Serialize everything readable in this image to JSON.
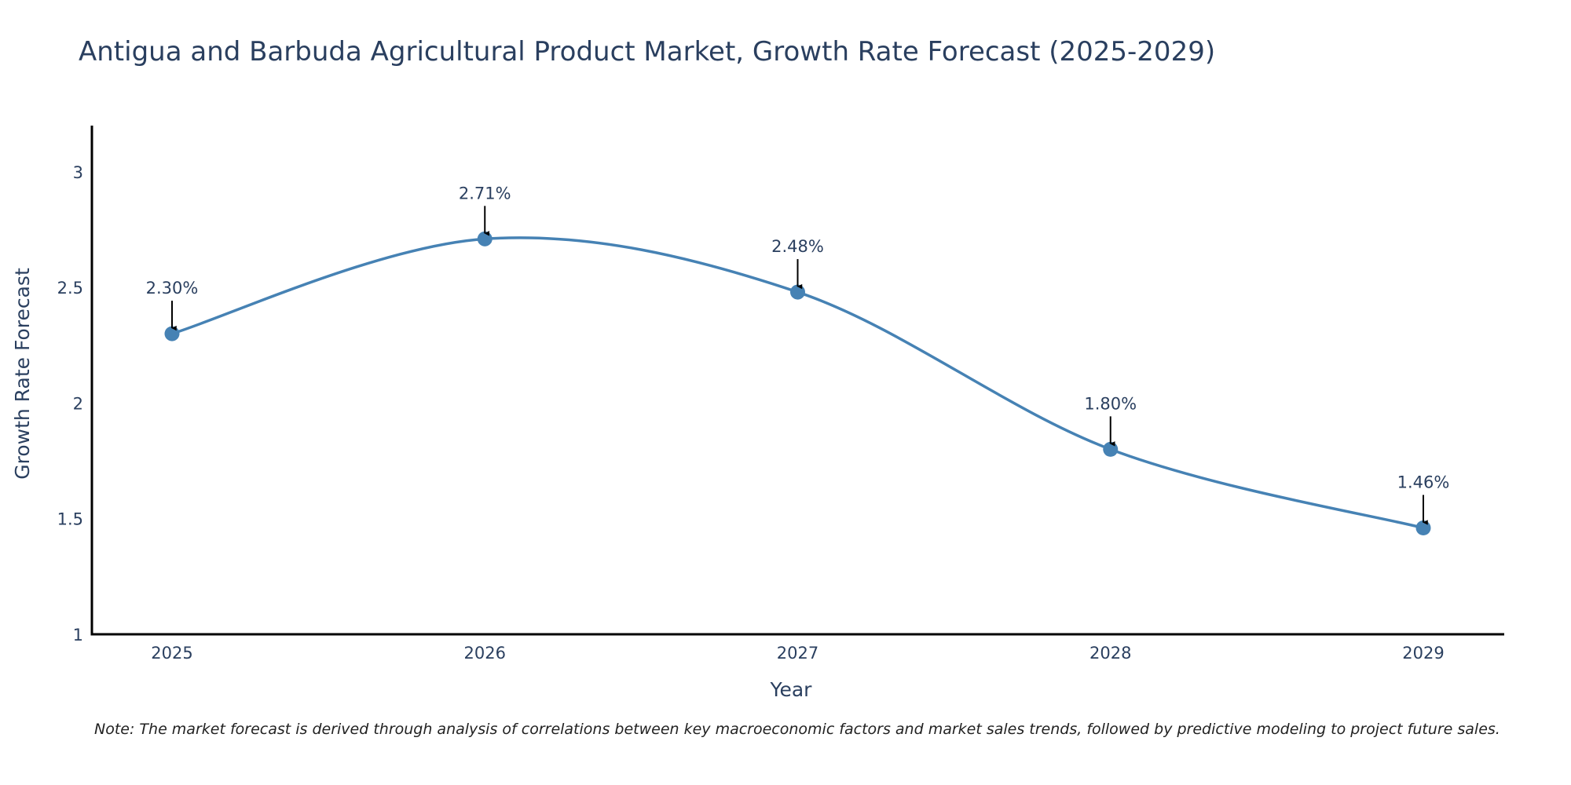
{
  "chart_data": {
    "type": "line",
    "title": "Antigua and Barbuda Agricultural Product Market, Growth Rate Forecast (2025-2029)",
    "xlabel": "Year",
    "ylabel": "Growth Rate Forecast",
    "categories": [
      "2025",
      "2026",
      "2027",
      "2028",
      "2029"
    ],
    "series": [
      {
        "name": "Growth Rate Forecast",
        "values": [
          2.3,
          2.71,
          2.48,
          1.8,
          1.46
        ],
        "labels": [
          "2.30%",
          "2.71%",
          "2.48%",
          "1.80%",
          "1.46%"
        ]
      }
    ],
    "ylim": [
      1,
      3.2
    ],
    "yticks": [
      1,
      1.5,
      2,
      2.5,
      3
    ],
    "ytick_labels": [
      "1",
      "1.5",
      "2",
      "2.5",
      "3"
    ],
    "line_shape": "spline",
    "grid": false,
    "colors": {
      "line": "#4682b4",
      "marker": "#4682b4",
      "axis": "#000000",
      "text": "#2a3f5f",
      "arrow": "#000000"
    }
  },
  "footnote": "Note: The market forecast is derived through analysis of correlations between key macroeconomic factors and market sales trends, followed by predictive modeling to project future sales."
}
